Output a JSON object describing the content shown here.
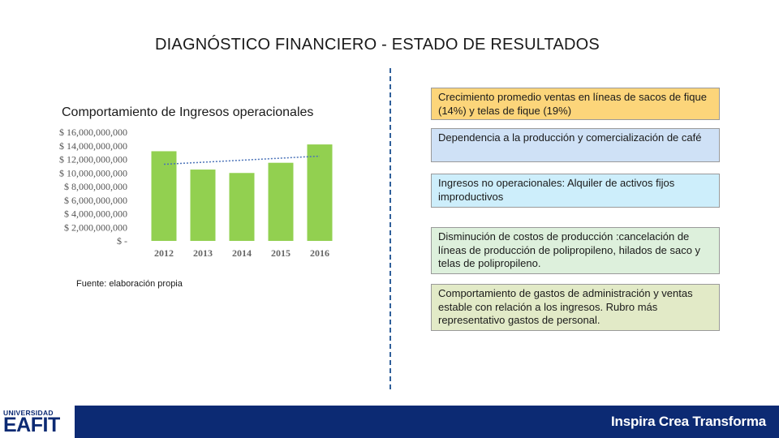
{
  "slide": {
    "title": "DIAGNÓSTICO FINANCIERO - ESTADO DE RESULTADOS",
    "chart_subtitle": "Comportamiento de Ingresos operacionales",
    "source_note": "Fuente: elaboración propia"
  },
  "boxes": [
    {
      "text": "Crecimiento promedio  ventas en líneas de sacos de fique (14%) y telas de fique (19%)",
      "color": "#fcd57a"
    },
    {
      "text": "Dependencia a la producción y comercialización de café",
      "color": "#cfe1f6"
    },
    {
      "text": "Ingresos no operacionales: Alquiler de activos fijos improductivos",
      "color": "#cdeefb"
    },
    {
      "text": "Disminución de costos de producción :cancelación de líneas de producción de polipropileno, hilados de saco y telas de polipropileno.",
      "color": "#ddf0dc"
    },
    {
      "text": "Comportamiento de gastos de administración y ventas estable con relación a los ingresos. Rubro más representativo gastos de personal.",
      "color": "#e2eac7"
    }
  ],
  "footer": {
    "logo_top": "UNIVERSIDAD",
    "logo_main": "EAFIT",
    "tagline": "Inspira Crea Transforma"
  },
  "chart_data": {
    "type": "bar",
    "title": "",
    "categories": [
      "2012",
      "2013",
      "2014",
      "2015",
      "2016"
    ],
    "values": [
      13200000000,
      10500000000,
      10000000000,
      11500000000,
      14200000000
    ],
    "trendline": true,
    "ytick_labels": [
      "$ 16,000,000,000",
      "$ 14,000,000,000",
      "$ 12,000,000,000",
      "$ 10,000,000,000",
      "$ 8,000,000,000",
      "$ 6,000,000,000",
      "$ 4,000,000,000",
      "$ 2,000,000,000",
      "$ -"
    ],
    "ytick_values": [
      16000000000,
      14000000000,
      12000000000,
      10000000000,
      8000000000,
      6000000000,
      4000000000,
      2000000000,
      0
    ],
    "ylim": [
      0,
      16000000000
    ],
    "xlabel": "",
    "ylabel": "",
    "colors": {
      "bar": "#92d050",
      "trend": "#4a72b8"
    }
  }
}
